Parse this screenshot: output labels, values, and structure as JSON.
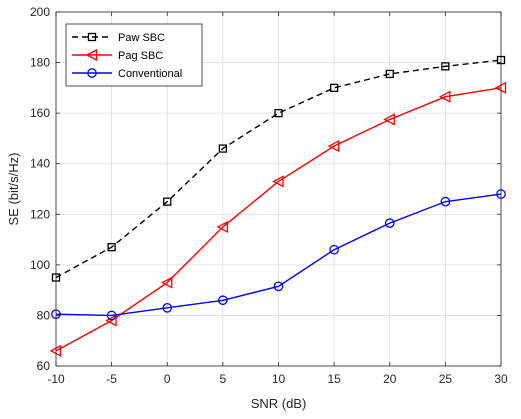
{
  "chart_data": {
    "type": "line",
    "title": "",
    "xlabel": "SNR (dB)",
    "ylabel": "SE (bit/s/Hz)",
    "x": [
      -10,
      -5,
      0,
      5,
      10,
      15,
      20,
      25,
      30
    ],
    "xlim": [
      -10,
      30
    ],
    "ylim": [
      60,
      200
    ],
    "xticks": [
      "-10",
      "-5",
      "0",
      "5",
      "10",
      "15",
      "20",
      "25",
      "30"
    ],
    "yticks": [
      "60",
      "80",
      "100",
      "120",
      "140",
      "160",
      "180",
      "200"
    ],
    "grid": true,
    "legend_position": "top-left",
    "series": [
      {
        "name": "Paw SBC",
        "color": "#000000",
        "line_style": "dashed",
        "marker": "square",
        "values": [
          95,
          107,
          125,
          146,
          160,
          170,
          175.5,
          178.5,
          181
        ]
      },
      {
        "name": "Pag SBC",
        "color": "#ff0000",
        "line_style": "solid",
        "marker": "left-triangle",
        "values": [
          66,
          78,
          93,
          115,
          133,
          147,
          157.5,
          166.5,
          170
        ]
      },
      {
        "name": "Conventional",
        "color": "#0000ff",
        "line_style": "solid",
        "marker": "circle",
        "values": [
          80.5,
          80,
          83,
          86,
          91.5,
          106,
          116.5,
          125,
          128
        ]
      }
    ]
  }
}
